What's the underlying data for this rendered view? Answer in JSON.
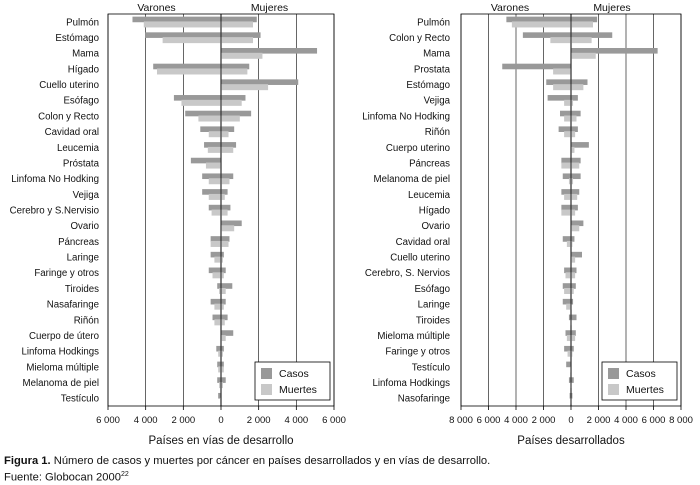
{
  "caption": {
    "label": "Figura 1.",
    "text": " Número de casos y muertes por cáncer en países desarrollados y en vías de desarrollo.",
    "source_prefix": "Fuente: Globocan 2000",
    "source_ref": "22"
  },
  "colors": {
    "casos": "#999999",
    "muertes": "#c8c8c8",
    "grid": "#000000"
  },
  "chart_data": [
    {
      "type": "bar",
      "orientation": "horizontal-butterfly",
      "xlabel": "Países en vías de desarrollo",
      "left_group": "Varones",
      "right_group": "Mujeres",
      "xlim": [
        -6000,
        6000
      ],
      "xticks": [
        -6000,
        -4000,
        -2000,
        0,
        2000,
        4000,
        6000
      ],
      "xtick_labels": [
        "6 000",
        "4 000",
        "2 000",
        "0",
        "2 000",
        "4 000",
        "6 000"
      ],
      "grid": true,
      "legend": "bottom-right",
      "legend_items": [
        "Casos",
        "Muertes"
      ],
      "categories": [
        "Pulmón",
        "Estómago",
        "Mama",
        "Hígado",
        "Cuello uterino",
        "Esófago",
        "Colon y Recto",
        "Cavidad oral",
        "Leucemia",
        "Próstata",
        "Linfoma No Hodking",
        "Vejiga",
        "Cerebro y S.Nervisio",
        "Ovario",
        "Páncreas",
        "Laringe",
        "Faringe y otros",
        "Tiroides",
        "Nasafaringe",
        "Riñón",
        "Cuerpo de útero",
        "Linfoma Hodkings",
        "Mieloma múltiple",
        "Melanoma de piel",
        "Testículo"
      ],
      "series": [
        {
          "name": "Casos",
          "side": "Varones",
          "values": [
            4700,
            4000,
            0,
            3600,
            0,
            2500,
            1900,
            1100,
            900,
            1600,
            1000,
            1000,
            650,
            0,
            550,
            550,
            650,
            200,
            550,
            450,
            0,
            250,
            200,
            200,
            150
          ]
        },
        {
          "name": "Muertes",
          "side": "Varones",
          "values": [
            4100,
            3100,
            0,
            3400,
            0,
            2100,
            1200,
            650,
            700,
            800,
            650,
            650,
            500,
            0,
            550,
            350,
            450,
            100,
            350,
            350,
            0,
            150,
            150,
            100,
            50
          ]
        },
        {
          "name": "Casos",
          "side": "Mujeres",
          "values": [
            1900,
            2100,
            5100,
            1500,
            4100,
            1300,
            1600,
            700,
            800,
            0,
            650,
            350,
            500,
            1100,
            450,
            150,
            250,
            600,
            250,
            350,
            650,
            150,
            150,
            250,
            0
          ]
        },
        {
          "name": "Muertes",
          "side": "Mujeres",
          "values": [
            1700,
            1700,
            2200,
            1400,
            2500,
            1100,
            1000,
            400,
            650,
            0,
            450,
            200,
            350,
            700,
            400,
            100,
            150,
            250,
            150,
            200,
            250,
            100,
            150,
            100,
            0
          ]
        }
      ]
    },
    {
      "type": "bar",
      "orientation": "horizontal-butterfly",
      "xlabel": "Países desarrollados",
      "left_group": "Varones",
      "right_group": "Mujeres",
      "xlim": [
        -8000,
        8000
      ],
      "xticks": [
        -8000,
        -6000,
        -4000,
        -2000,
        0,
        2000,
        4000,
        6000,
        8000
      ],
      "xtick_labels": [
        "8 000",
        "6 000",
        "4 000",
        "2 000",
        "0",
        "2 000",
        "4 000",
        "6 000",
        "8 000"
      ],
      "grid": true,
      "legend": "bottom-right",
      "legend_items": [
        "Casos",
        "Muertes"
      ],
      "categories": [
        "Pulmón",
        "Colon y Recto",
        "Mama",
        "Prostata",
        "Estómago",
        "Vejiga",
        "Linfoma No Hodking",
        "Riñón",
        "Cuerpo uterino",
        "Páncreas",
        "Melanoma de piel",
        "Leucemia",
        "Hígado",
        "Ovario",
        "Cavidad oral",
        "Cuello uterino",
        "Cerebro, S. Nervios",
        "Esófago",
        "Laringe",
        "Tiroides",
        "Mieloma múltiple",
        "Faringe y otros",
        "Testículo",
        "Linfoma Hodkings",
        "Nasofaringe"
      ],
      "series": [
        {
          "name": "Casos",
          "side": "Varones",
          "values": [
            4700,
            3500,
            0,
            5000,
            1800,
            1700,
            800,
            900,
            0,
            700,
            600,
            700,
            700,
            0,
            600,
            0,
            500,
            600,
            600,
            150,
            400,
            500,
            350,
            150,
            100
          ]
        },
        {
          "name": "Muertes",
          "side": "Varones",
          "values": [
            4300,
            1500,
            0,
            1300,
            1300,
            500,
            500,
            500,
            0,
            700,
            150,
            500,
            700,
            0,
            300,
            0,
            400,
            500,
            350,
            50,
            300,
            250,
            50,
            50,
            50
          ]
        },
        {
          "name": "Casos",
          "side": "Mujeres",
          "values": [
            1900,
            3000,
            6300,
            0,
            1200,
            500,
            700,
            500,
            1300,
            700,
            700,
            600,
            500,
            900,
            250,
            800,
            400,
            350,
            150,
            400,
            350,
            200,
            0,
            200,
            100
          ]
        },
        {
          "name": "Muertes",
          "side": "Mujeres",
          "values": [
            1600,
            1500,
            1800,
            0,
            900,
            150,
            400,
            300,
            250,
            600,
            150,
            450,
            300,
            600,
            100,
            300,
            300,
            200,
            50,
            50,
            300,
            100,
            0,
            50,
            50
          ]
        }
      ]
    }
  ]
}
